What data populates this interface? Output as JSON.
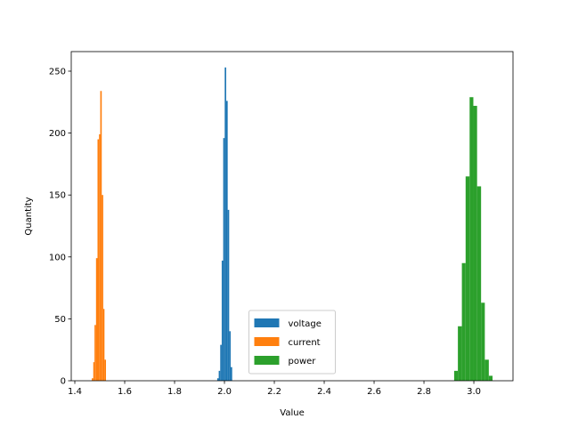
{
  "chart_data": {
    "type": "histogram",
    "xlabel": "Value",
    "ylabel": "Quantity",
    "xlim": [
      1.3857,
      3.157
    ],
    "ylim": [
      0,
      265.8
    ],
    "xticks": [
      1.4,
      1.6,
      1.8,
      {
        "value": 2,
        "label": "2.0"
      },
      2.2,
      2.4,
      2.6,
      2.8,
      {
        "value": 3,
        "label": "3.0"
      }
    ],
    "yticks": [
      0,
      50,
      100,
      150,
      200,
      250
    ],
    "legend": "lower center",
    "series": [
      {
        "name": "voltage",
        "color": "#1f77b4",
        "bins": [
          1.971,
          1.977,
          1.983,
          1.989,
          1.995,
          2.001,
          2.007,
          2.013,
          2.019,
          2.025,
          2.031
        ],
        "values": [
          2,
          8,
          29,
          97,
          196,
          253,
          226,
          138,
          40,
          11
        ]
      },
      {
        "name": "current",
        "color": "#ff7f0e",
        "bins": [
          1.468,
          1.474,
          1.479,
          1.485,
          1.491,
          1.497,
          1.502,
          1.508,
          1.514,
          1.519,
          1.525
        ],
        "values": [
          2,
          15,
          45,
          99,
          195,
          199,
          234,
          150,
          58,
          17
        ]
      },
      {
        "name": "power",
        "color": "#2ca02c",
        "bins": [
          2.921,
          2.936,
          2.952,
          2.967,
          2.983,
          2.998,
          3.013,
          3.029,
          3.044,
          3.06,
          3.075
        ],
        "values": [
          8,
          44,
          95,
          165,
          229,
          222,
          157,
          63,
          17,
          4
        ]
      }
    ]
  }
}
